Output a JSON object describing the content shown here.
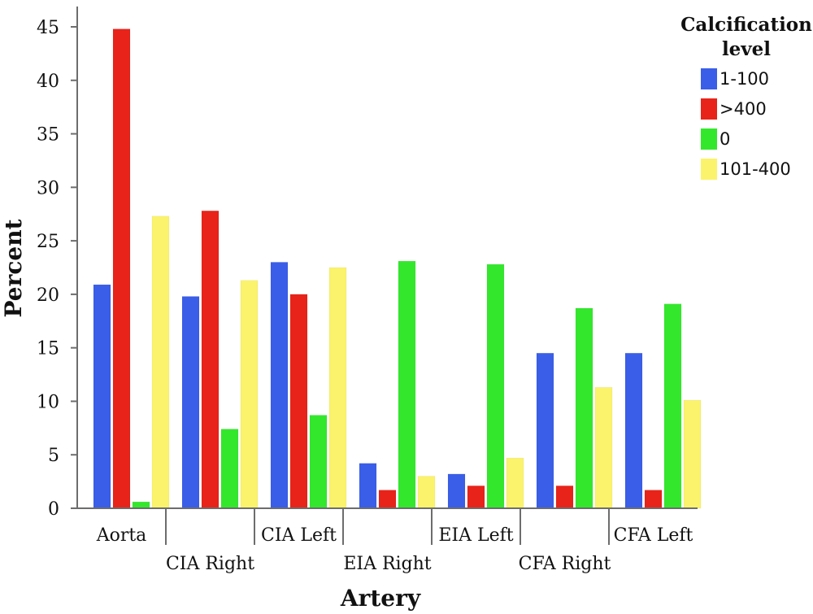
{
  "chart_data": {
    "type": "bar",
    "xlabel": "Artery",
    "ylabel": "Percent",
    "ylim": [
      0,
      45
    ],
    "yticks": [
      0,
      5,
      10,
      15,
      20,
      25,
      30,
      35,
      40,
      45
    ],
    "categories": [
      "Aorta",
      "CIA Right",
      "CIA Left",
      "EIA Right",
      "EIA Left",
      "CFA Right",
      "CFA Left"
    ],
    "legend": {
      "title_lines": [
        "Calcification",
        "level"
      ],
      "placement": "top-right"
    },
    "grid": false,
    "series": [
      {
        "name": "1-100",
        "color": "#3a5ee8",
        "values": [
          20.9,
          19.8,
          23.0,
          4.2,
          3.2,
          14.5,
          14.5
        ]
      },
      {
        "name": ">400",
        "color": "#e8231a",
        "values": [
          44.8,
          27.8,
          20.0,
          1.7,
          2.1,
          2.1,
          1.7
        ]
      },
      {
        "name": "0",
        "color": "#33e82c",
        "values": [
          0.6,
          7.4,
          8.7,
          23.1,
          22.8,
          18.7,
          19.1
        ]
      },
      {
        "name": "101-400",
        "color": "#fbf36b",
        "values": [
          27.3,
          21.3,
          22.5,
          3.0,
          4.7,
          11.3,
          10.1
        ]
      }
    ]
  }
}
